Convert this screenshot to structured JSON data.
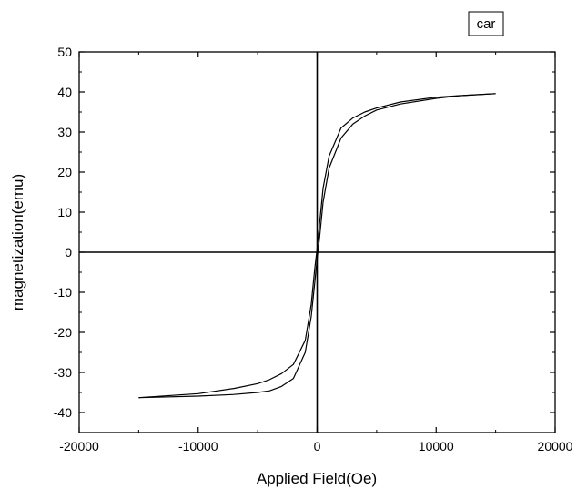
{
  "chart_data": {
    "type": "line",
    "title": "",
    "xlabel": "Applied Field(Oe)",
    "ylabel": "magnetization(emu)",
    "xlim": [
      -20000,
      20000
    ],
    "ylim": [
      -45,
      50
    ],
    "xticks": [
      -20000,
      -10000,
      0,
      10000,
      20000
    ],
    "xtick_labels": [
      "-20000",
      "-10000",
      "0",
      "10000",
      "20000"
    ],
    "yticks": [
      -40,
      -30,
      -20,
      -10,
      0,
      10,
      20,
      30,
      40,
      50
    ],
    "ytick_labels": [
      "-40",
      "-30",
      "-20",
      "-10",
      "0",
      "10",
      "20",
      "30",
      "40",
      "50"
    ],
    "grid": false,
    "legend": {
      "position": "top-right",
      "entries": [
        "car"
      ]
    },
    "series": [
      {
        "name": "car",
        "color": "#000000",
        "x": [
          -15000,
          -10000,
          -7000,
          -5000,
          -4000,
          -3000,
          -2000,
          -1000,
          -500,
          -200,
          0,
          200,
          500,
          1000,
          2000,
          3000,
          4000,
          5000,
          7000,
          10000,
          12000,
          15000
        ],
        "y": [
          -36.3,
          -35.3,
          -34.0,
          -32.8,
          -31.8,
          -30.3,
          -28.0,
          -22.0,
          -13.0,
          -4.0,
          1.0,
          7.0,
          16.0,
          24.0,
          31.0,
          33.5,
          35.0,
          36.0,
          37.5,
          38.7,
          39.1,
          39.6
        ]
      },
      {
        "name": "car",
        "color": "#000000",
        "x": [
          15000,
          12000,
          10000,
          7000,
          5000,
          4000,
          3000,
          2000,
          1000,
          500,
          200,
          0,
          -200,
          -500,
          -1000,
          -2000,
          -3000,
          -4000,
          -5000,
          -7000,
          -10000,
          -15000
        ],
        "y": [
          39.6,
          39.1,
          38.4,
          37.0,
          35.5,
          34.0,
          32.0,
          28.5,
          21.0,
          12.5,
          3.5,
          -1.5,
          -7.5,
          -16.0,
          -25.0,
          -31.5,
          -33.5,
          -34.6,
          -35.0,
          -35.5,
          -35.9,
          -36.3
        ]
      }
    ]
  }
}
